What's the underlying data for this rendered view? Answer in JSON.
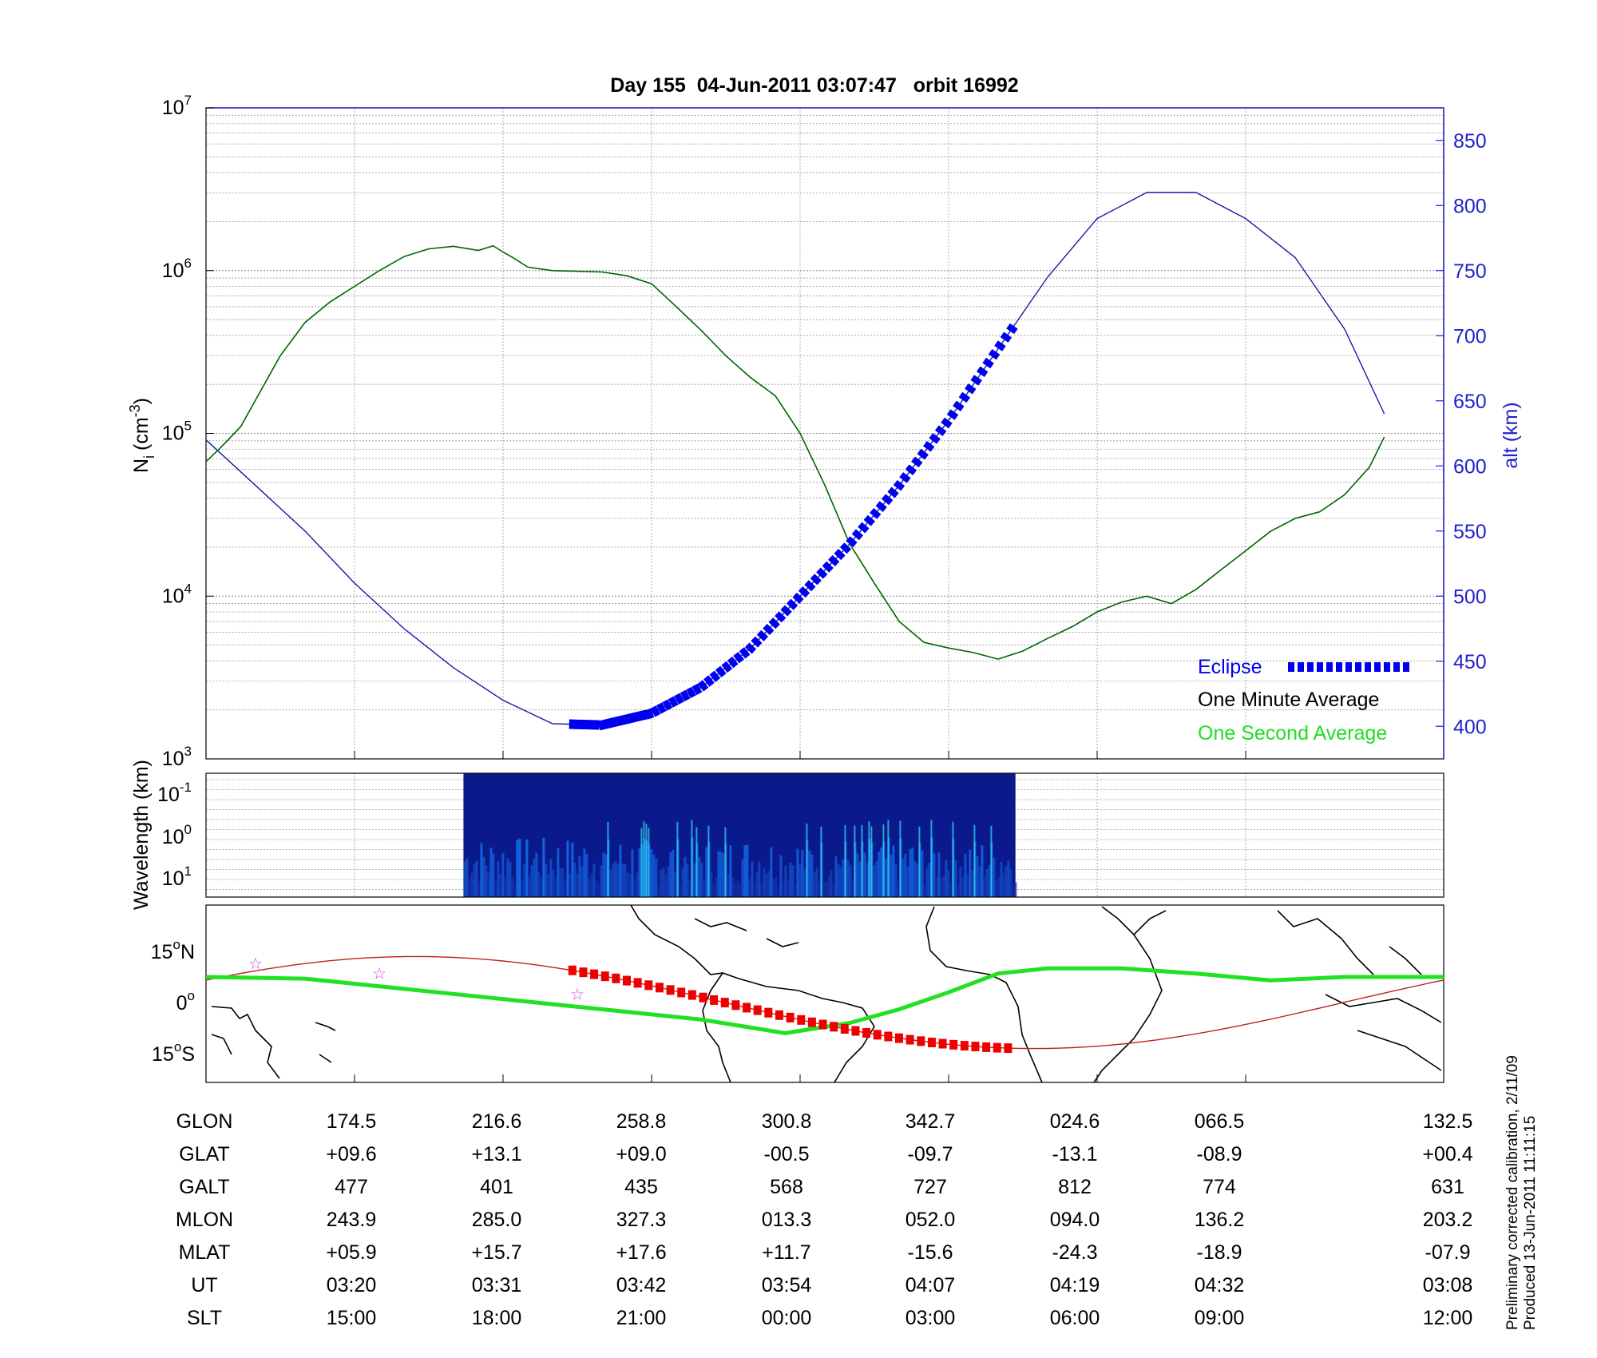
{
  "title": "Day 155  04-Jun-2011 03:07:47   orbit 16992",
  "colors": {
    "one_minute": "#006400",
    "one_second": "#22dd22",
    "altitude": "#1a1aaa",
    "eclipse": "#0000ee",
    "axis_right": "#2222cc",
    "map_track": "#bb2222",
    "map_dip": "#22e022",
    "map_eclipse": "#ee0000",
    "stars": "#cc44cc"
  },
  "top_panel": {
    "ylabel": "N_i (cm^-3)",
    "ylabel_main": "N",
    "ylabel_sub": "i",
    "ylabel_unit": "(cm",
    "ylabel_exp": "-3",
    "ylabel_close": ")",
    "y_ticks": [
      {
        "base": "10",
        "exp": "3"
      },
      {
        "base": "10",
        "exp": "4"
      },
      {
        "base": "10",
        "exp": "5"
      },
      {
        "base": "10",
        "exp": "6"
      },
      {
        "base": "10",
        "exp": "7"
      }
    ],
    "right_label": "alt (km)",
    "right_ticks": [
      "400",
      "450",
      "500",
      "550",
      "600",
      "650",
      "700",
      "750",
      "800",
      "850"
    ],
    "legend": {
      "eclipse": "Eclipse",
      "one_minute": "One Minute Average",
      "one_second": "One Second Average"
    }
  },
  "spectrogram": {
    "ylabel": "Wavelength (km)",
    "y_ticks": [
      {
        "base": "10",
        "exp": "-1"
      },
      {
        "base": "10",
        "exp": "0"
      },
      {
        "base": "10",
        "exp": "1"
      }
    ]
  },
  "map": {
    "y_ticks": [
      {
        "value": "15",
        "deg": "o",
        "hemi": "N"
      },
      {
        "value": "0",
        "deg": "o",
        "hemi": ""
      },
      {
        "value": "15",
        "deg": "o",
        "hemi": "S"
      }
    ]
  },
  "table": {
    "rows": [
      {
        "label": "GLON",
        "values": [
          "174.5",
          "216.6",
          "258.8",
          "300.8",
          "342.7",
          "024.6",
          "066.5",
          "132.5"
        ]
      },
      {
        "label": "GLAT",
        "values": [
          "+09.6",
          "+13.1",
          "+09.0",
          "-00.5",
          "-09.7",
          "-13.1",
          "-08.9",
          "+00.4"
        ]
      },
      {
        "label": "GALT",
        "values": [
          "477",
          "401",
          "435",
          "568",
          "727",
          "812",
          "774",
          "631"
        ]
      },
      {
        "label": "MLON",
        "values": [
          "243.9",
          "285.0",
          "327.3",
          "013.3",
          "052.0",
          "094.0",
          "136.2",
          "203.2"
        ]
      },
      {
        "label": "MLAT",
        "values": [
          "+05.9",
          "+15.7",
          "+17.6",
          "+11.7",
          "-15.6",
          "-24.3",
          "-18.9",
          "-07.9"
        ]
      },
      {
        "label": "UT",
        "values": [
          "03:20",
          "03:31",
          "03:42",
          "03:54",
          "04:07",
          "04:19",
          "04:32",
          "03:08"
        ]
      },
      {
        "label": "SLT",
        "values": [
          "15:00",
          "18:00",
          "21:00",
          "00:00",
          "03:00",
          "06:00",
          "09:00",
          "12:00"
        ]
      }
    ]
  },
  "side_notes": [
    "Preliminary corrected calibration, 2/11/09",
    "Produced 13-Jun-2011 11:11:15"
  ],
  "chart_data": {
    "type": "line",
    "title": "Day 155  04-Jun-2011 03:07:47   orbit 16992",
    "x_ticks_slt": [
      "15:00",
      "18:00",
      "21:00",
      "00:00",
      "03:00",
      "06:00",
      "09:00",
      "12:00"
    ],
    "x_ticks_ut": [
      "03:20",
      "03:31",
      "03:42",
      "03:54",
      "04:07",
      "04:19",
      "04:32",
      "03:08"
    ],
    "ylabel": "N_i (cm^-3)",
    "y_scale": "log",
    "ylim": [
      1000,
      10000000
    ],
    "y2label": "alt (km)",
    "y2lim": [
      375,
      875
    ],
    "grid": true,
    "legend_position": "bottom-right",
    "series": [
      {
        "name": "One Minute Average",
        "axis": "left",
        "x_slt": [
          12.0,
          12.3,
          12.7,
          13.0,
          13.5,
          14.0,
          14.5,
          15.0,
          15.5,
          16.0,
          16.5,
          17.0,
          17.5,
          17.8,
          18.0,
          18.2,
          18.5,
          19.0,
          19.5,
          20.0,
          20.5,
          21.0,
          21.5,
          22.0,
          22.5,
          23.0,
          23.5,
          24.0,
          24.5,
          25.0,
          25.5,
          26.0,
          26.5,
          27.0,
          27.5,
          28.0,
          28.5,
          29.0,
          29.5,
          30.0,
          30.5,
          31.0,
          31.5,
          32.0,
          32.5,
          33.0,
          33.5,
          34.0,
          34.5,
          35.0,
          35.5,
          35.8
        ],
        "values": [
          67000,
          82000,
          110000,
          160000,
          300000,
          480000,
          640000,
          800000,
          1000000,
          1220000,
          1360000,
          1410000,
          1330000,
          1420000,
          1300000,
          1200000,
          1050000,
          1000000,
          990000,
          980000,
          930000,
          830000,
          600000,
          430000,
          300000,
          220000,
          170000,
          100000,
          48000,
          21000,
          12000,
          7000,
          5200,
          4800,
          4500,
          4100,
          4600,
          5500,
          6500,
          8000,
          9200,
          10000,
          9000,
          11000,
          14500,
          19000,
          25000,
          30000,
          33000,
          42000,
          62000,
          95000
        ]
      },
      {
        "name": "",
        "axis": "right",
        "x_slt": [
          12.0,
          13.0,
          14.0,
          15.0,
          16.0,
          17.0,
          18.0,
          19.0,
          20.0,
          21.0,
          22.0,
          23.0,
          24.0,
          25.0,
          26.0,
          27.0,
          28.0,
          29.0,
          30.0,
          31.0,
          32.0,
          33.0,
          34.0,
          35.0,
          35.8
        ],
        "values": [
          620,
          585,
          550,
          510,
          475,
          445,
          420,
          402,
          401,
          410,
          430,
          460,
          500,
          540,
          585,
          635,
          690,
          745,
          790,
          810,
          810,
          790,
          760,
          705,
          640
        ]
      }
    ],
    "eclipse_interval_slt": [
      19.4,
      28.3
    ]
  }
}
